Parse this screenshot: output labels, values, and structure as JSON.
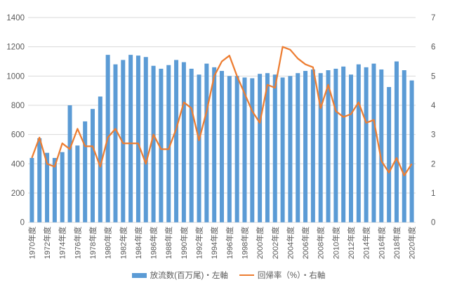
{
  "chart_data": {
    "type": "combo",
    "subtype": [
      "bar",
      "line"
    ],
    "title": "",
    "categories": [
      1970,
      1971,
      1972,
      1973,
      1974,
      1975,
      1976,
      1977,
      1978,
      1979,
      1980,
      1981,
      1982,
      1983,
      1984,
      1985,
      1986,
      1987,
      1988,
      1989,
      1990,
      1991,
      1992,
      1993,
      1994,
      1995,
      1996,
      1997,
      1998,
      1999,
      2000,
      2001,
      2002,
      2003,
      2004,
      2005,
      2006,
      2007,
      2008,
      2009,
      2010,
      2011,
      2012,
      2013,
      2014,
      2015,
      2016,
      2017,
      2018,
      2019,
      2020
    ],
    "x_tick_suffix": "年度",
    "x_tick_every": 2,
    "series": [
      {
        "name": "放流数(百万尾)・左軸",
        "type": "bar",
        "axis": "left",
        "color": "#5B9BD5",
        "values": [
          440,
          575,
          475,
          440,
          480,
          800,
          525,
          690,
          775,
          860,
          1145,
          1080,
          1110,
          1145,
          1140,
          1130,
          1070,
          1050,
          1075,
          1110,
          1095,
          1050,
          1010,
          1085,
          1060,
          1035,
          1000,
          1000,
          990,
          985,
          1015,
          1020,
          1010,
          990,
          1000,
          1020,
          1035,
          1045,
          1020,
          1040,
          1050,
          1065,
          1010,
          1080,
          1060,
          1085,
          1045,
          925,
          1100,
          1040,
          970
        ]
      },
      {
        "name": "回帰率（%）・右軸",
        "type": "line",
        "axis": "right",
        "color": "#ED7D31",
        "values": [
          2.2,
          2.9,
          2.0,
          1.9,
          2.7,
          2.5,
          3.2,
          2.6,
          2.6,
          1.9,
          2.9,
          3.2,
          2.7,
          2.7,
          2.7,
          2.0,
          3.0,
          2.5,
          2.5,
          3.2,
          4.1,
          3.9,
          2.8,
          3.8,
          5.0,
          5.5,
          5.7,
          5.0,
          4.4,
          3.8,
          3.4,
          4.7,
          4.6,
          6.0,
          5.9,
          5.6,
          5.4,
          5.3,
          3.9,
          4.7,
          3.8,
          3.6,
          3.7,
          4.1,
          3.4,
          3.5,
          2.1,
          1.7,
          2.2,
          1.6,
          2.0
        ]
      }
    ],
    "axes": {
      "left": {
        "min": 0,
        "max": 1400,
        "step": 200,
        "tick_labels": [
          "0",
          "200",
          "400",
          "600",
          "800",
          "1000",
          "1200",
          "1400"
        ]
      },
      "right": {
        "min": 0,
        "max": 7,
        "step": 1,
        "tick_labels": [
          "0",
          "1",
          "2",
          "3",
          "4",
          "5",
          "6",
          "7"
        ]
      }
    },
    "grid": true,
    "legend_position": "bottom"
  },
  "legend": {
    "bar_label": "放流数(百万尾)・左軸",
    "line_label": "回帰率（%）・右軸"
  },
  "colors": {
    "bar": "#5B9BD5",
    "line": "#ED7D31",
    "grid": "#D9D9D9",
    "axis_text": "#595959",
    "background": "#FFFFFF"
  }
}
